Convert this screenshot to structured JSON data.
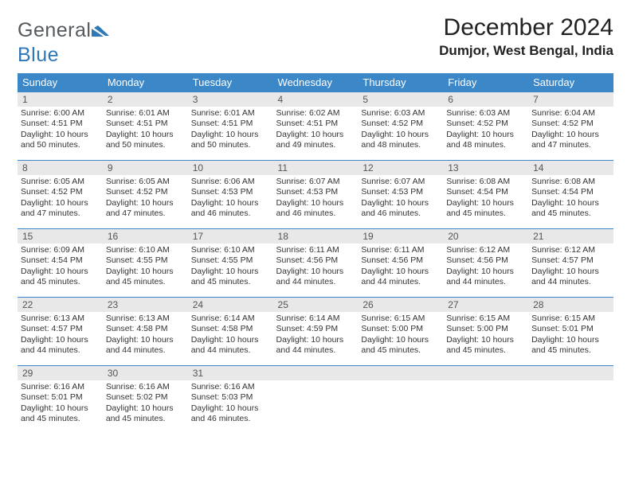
{
  "brand": {
    "text_a": "General",
    "text_b": "Blue"
  },
  "title": "December 2024",
  "location": "Dumjor, West Bengal, India",
  "colors": {
    "header_bg": "#3b87c8",
    "header_text": "#ffffff",
    "row_border": "#3b87c8",
    "daynum_bg": "#e8e8e8",
    "daynum_text": "#555555",
    "body_text": "#333333",
    "logo_gray": "#555a5e",
    "logo_blue": "#2f78b7"
  },
  "weekdays": [
    "Sunday",
    "Monday",
    "Tuesday",
    "Wednesday",
    "Thursday",
    "Friday",
    "Saturday"
  ],
  "weeks": [
    [
      {
        "n": "1",
        "sunrise": "6:00 AM",
        "sunset": "4:51 PM",
        "daylight": "10 hours and 50 minutes."
      },
      {
        "n": "2",
        "sunrise": "6:01 AM",
        "sunset": "4:51 PM",
        "daylight": "10 hours and 50 minutes."
      },
      {
        "n": "3",
        "sunrise": "6:01 AM",
        "sunset": "4:51 PM",
        "daylight": "10 hours and 50 minutes."
      },
      {
        "n": "4",
        "sunrise": "6:02 AM",
        "sunset": "4:51 PM",
        "daylight": "10 hours and 49 minutes."
      },
      {
        "n": "5",
        "sunrise": "6:03 AM",
        "sunset": "4:52 PM",
        "daylight": "10 hours and 48 minutes."
      },
      {
        "n": "6",
        "sunrise": "6:03 AM",
        "sunset": "4:52 PM",
        "daylight": "10 hours and 48 minutes."
      },
      {
        "n": "7",
        "sunrise": "6:04 AM",
        "sunset": "4:52 PM",
        "daylight": "10 hours and 47 minutes."
      }
    ],
    [
      {
        "n": "8",
        "sunrise": "6:05 AM",
        "sunset": "4:52 PM",
        "daylight": "10 hours and 47 minutes."
      },
      {
        "n": "9",
        "sunrise": "6:05 AM",
        "sunset": "4:52 PM",
        "daylight": "10 hours and 47 minutes."
      },
      {
        "n": "10",
        "sunrise": "6:06 AM",
        "sunset": "4:53 PM",
        "daylight": "10 hours and 46 minutes."
      },
      {
        "n": "11",
        "sunrise": "6:07 AM",
        "sunset": "4:53 PM",
        "daylight": "10 hours and 46 minutes."
      },
      {
        "n": "12",
        "sunrise": "6:07 AM",
        "sunset": "4:53 PM",
        "daylight": "10 hours and 46 minutes."
      },
      {
        "n": "13",
        "sunrise": "6:08 AM",
        "sunset": "4:54 PM",
        "daylight": "10 hours and 45 minutes."
      },
      {
        "n": "14",
        "sunrise": "6:08 AM",
        "sunset": "4:54 PM",
        "daylight": "10 hours and 45 minutes."
      }
    ],
    [
      {
        "n": "15",
        "sunrise": "6:09 AM",
        "sunset": "4:54 PM",
        "daylight": "10 hours and 45 minutes."
      },
      {
        "n": "16",
        "sunrise": "6:10 AM",
        "sunset": "4:55 PM",
        "daylight": "10 hours and 45 minutes."
      },
      {
        "n": "17",
        "sunrise": "6:10 AM",
        "sunset": "4:55 PM",
        "daylight": "10 hours and 45 minutes."
      },
      {
        "n": "18",
        "sunrise": "6:11 AM",
        "sunset": "4:56 PM",
        "daylight": "10 hours and 44 minutes."
      },
      {
        "n": "19",
        "sunrise": "6:11 AM",
        "sunset": "4:56 PM",
        "daylight": "10 hours and 44 minutes."
      },
      {
        "n": "20",
        "sunrise": "6:12 AM",
        "sunset": "4:56 PM",
        "daylight": "10 hours and 44 minutes."
      },
      {
        "n": "21",
        "sunrise": "6:12 AM",
        "sunset": "4:57 PM",
        "daylight": "10 hours and 44 minutes."
      }
    ],
    [
      {
        "n": "22",
        "sunrise": "6:13 AM",
        "sunset": "4:57 PM",
        "daylight": "10 hours and 44 minutes."
      },
      {
        "n": "23",
        "sunrise": "6:13 AM",
        "sunset": "4:58 PM",
        "daylight": "10 hours and 44 minutes."
      },
      {
        "n": "24",
        "sunrise": "6:14 AM",
        "sunset": "4:58 PM",
        "daylight": "10 hours and 44 minutes."
      },
      {
        "n": "25",
        "sunrise": "6:14 AM",
        "sunset": "4:59 PM",
        "daylight": "10 hours and 44 minutes."
      },
      {
        "n": "26",
        "sunrise": "6:15 AM",
        "sunset": "5:00 PM",
        "daylight": "10 hours and 45 minutes."
      },
      {
        "n": "27",
        "sunrise": "6:15 AM",
        "sunset": "5:00 PM",
        "daylight": "10 hours and 45 minutes."
      },
      {
        "n": "28",
        "sunrise": "6:15 AM",
        "sunset": "5:01 PM",
        "daylight": "10 hours and 45 minutes."
      }
    ],
    [
      {
        "n": "29",
        "sunrise": "6:16 AM",
        "sunset": "5:01 PM",
        "daylight": "10 hours and 45 minutes."
      },
      {
        "n": "30",
        "sunrise": "6:16 AM",
        "sunset": "5:02 PM",
        "daylight": "10 hours and 45 minutes."
      },
      {
        "n": "31",
        "sunrise": "6:16 AM",
        "sunset": "5:03 PM",
        "daylight": "10 hours and 46 minutes."
      },
      {
        "n": "",
        "empty": true
      },
      {
        "n": "",
        "empty": true
      },
      {
        "n": "",
        "empty": true
      },
      {
        "n": "",
        "empty": true
      }
    ]
  ],
  "labels": {
    "sunrise": "Sunrise:",
    "sunset": "Sunset:",
    "daylight": "Daylight:"
  }
}
